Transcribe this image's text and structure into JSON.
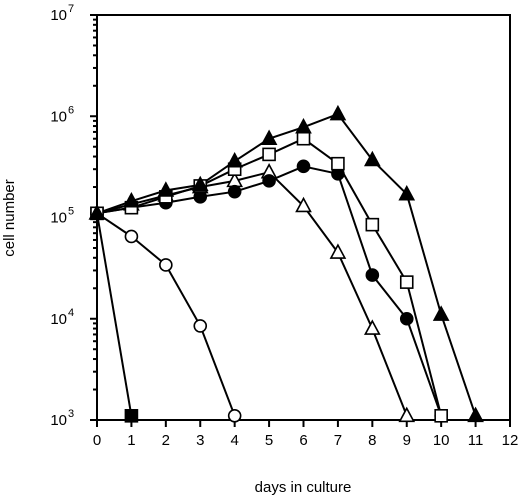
{
  "chart_data": {
    "type": "line",
    "xlabel": "days in culture",
    "ylabel": "cell number",
    "xlim": [
      0,
      12
    ],
    "ylim": [
      1000,
      10000000
    ],
    "yscale": "log",
    "grid": false,
    "xticks": [
      0,
      1,
      2,
      3,
      4,
      5,
      6,
      7,
      8,
      9,
      10,
      11,
      12
    ],
    "yticks": [
      {
        "value": 1000,
        "base": "10",
        "exp": "3"
      },
      {
        "value": 10000,
        "base": "10",
        "exp": "4"
      },
      {
        "value": 100000,
        "base": "10",
        "exp": "5"
      },
      {
        "value": 1000000,
        "base": "10",
        "exp": "6"
      },
      {
        "value": 10000000,
        "base": "10",
        "exp": "7"
      }
    ],
    "series": [
      {
        "marker": "filled-square",
        "points": [
          [
            0,
            110000
          ],
          [
            1,
            1100
          ]
        ]
      },
      {
        "marker": "open-circle",
        "points": [
          [
            0,
            110000
          ],
          [
            1,
            65000
          ],
          [
            2,
            34000
          ],
          [
            3,
            8500
          ],
          [
            4,
            1100
          ]
        ]
      },
      {
        "marker": "open-triangle",
        "points": [
          [
            0,
            110000
          ],
          [
            1,
            135000
          ],
          [
            2,
            165000
          ],
          [
            3,
            200000
          ],
          [
            4,
            230000
          ],
          [
            5,
            280000
          ],
          [
            6,
            130000
          ],
          [
            7,
            45000
          ],
          [
            8,
            8000
          ],
          [
            9,
            1100
          ]
        ]
      },
      {
        "marker": "filled-circle",
        "points": [
          [
            0,
            110000
          ],
          [
            1,
            125000
          ],
          [
            2,
            140000
          ],
          [
            3,
            160000
          ],
          [
            4,
            180000
          ],
          [
            5,
            230000
          ],
          [
            6,
            320000
          ],
          [
            7,
            270000
          ],
          [
            8,
            27000
          ],
          [
            9,
            10000
          ],
          [
            10,
            1100
          ]
        ]
      },
      {
        "marker": "open-square",
        "points": [
          [
            0,
            110000
          ],
          [
            1,
            125000
          ],
          [
            2,
            160000
          ],
          [
            3,
            205000
          ],
          [
            4,
            300000
          ],
          [
            5,
            420000
          ],
          [
            6,
            600000
          ],
          [
            7,
            340000
          ],
          [
            8,
            85000
          ],
          [
            9,
            23000
          ],
          [
            10,
            1100
          ]
        ]
      },
      {
        "marker": "filled-triangle",
        "points": [
          [
            0,
            110000
          ],
          [
            1,
            145000
          ],
          [
            2,
            185000
          ],
          [
            3,
            210000
          ],
          [
            4,
            360000
          ],
          [
            5,
            600000
          ],
          [
            6,
            780000
          ],
          [
            7,
            1050000
          ],
          [
            8,
            370000
          ],
          [
            9,
            170000
          ],
          [
            10,
            11000
          ],
          [
            11,
            1100
          ]
        ]
      }
    ]
  }
}
